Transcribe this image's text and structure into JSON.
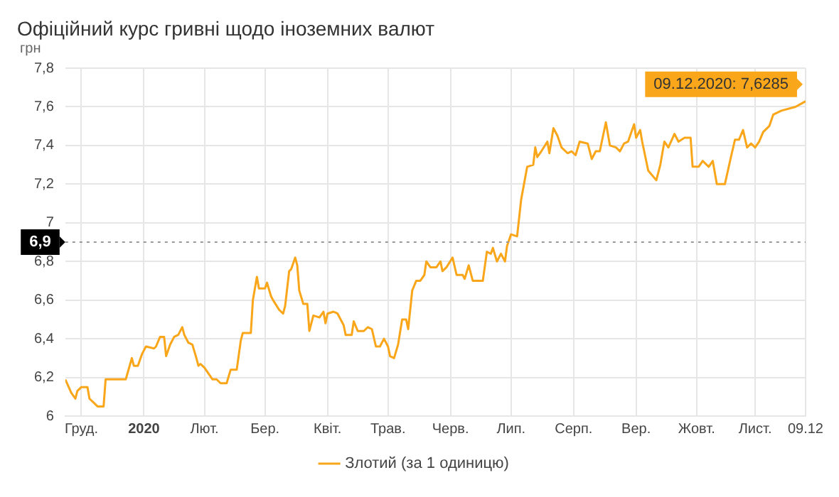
{
  "chart_data": {
    "type": "line",
    "title": "Офіційний курс гривні щодо іноземних валют",
    "ylabel": "грн",
    "xlim": [
      "2019-12-08",
      "2020-12-09"
    ],
    "xticks": [
      {
        "value": "2019-12-16",
        "label": "Груд."
      },
      {
        "value": "2020-01-16",
        "label": "2020"
      },
      {
        "value": "2020-02-15",
        "label": "Лют."
      },
      {
        "value": "2020-03-16",
        "label": "Бер."
      },
      {
        "value": "2020-04-16",
        "label": "Квіт."
      },
      {
        "value": "2020-05-16",
        "label": "Трав."
      },
      {
        "value": "2020-06-16",
        "label": "Черв."
      },
      {
        "value": "2020-07-16",
        "label": "Лип."
      },
      {
        "value": "2020-08-16",
        "label": "Серп."
      },
      {
        "value": "2020-09-16",
        "label": "Вер."
      },
      {
        "value": "2020-10-16",
        "label": "Жовт."
      },
      {
        "value": "2020-11-14",
        "label": "Лист."
      },
      {
        "value": "2020-12-09",
        "label": "09.12"
      }
    ],
    "ylim": [
      6,
      7.8
    ],
    "yticks": [
      6,
      {
        "value": 6.2,
        "label": "6,2"
      },
      {
        "value": 6.4,
        "label": "6,4"
      },
      {
        "value": 6.6,
        "label": "6,6"
      },
      {
        "value": 6.8,
        "label": "6,8"
      },
      7,
      {
        "value": 7.2,
        "label": "7,2"
      },
      {
        "value": 7.4,
        "label": "7,4"
      },
      {
        "value": 7.6,
        "label": "7,6"
      },
      {
        "value": 7.8,
        "label": "7,8"
      }
    ],
    "grid": true,
    "legend": "bottom",
    "marker": "none",
    "line_style": "solid",
    "ref_lines": [
      {
        "axis": "y",
        "value": 6.9,
        "label": "6,9",
        "color": "#999999",
        "line_style": "dotted"
      }
    ],
    "annotations": [
      {
        "text": "09.12.2020: 7,6285",
        "x": "2020-12-09",
        "y": 7.6285
      }
    ],
    "series": [
      {
        "name": "Злотий (за 1 одиницю)",
        "color": "#f9a61a",
        "x": [
          "2019-12-08",
          "2019-12-11",
          "2019-12-13",
          "2019-12-14",
          "2019-12-16",
          "2019-12-19",
          "2019-12-20",
          "2019-12-22",
          "2019-12-24",
          "2019-12-27",
          "2019-12-28",
          "2020-01-07",
          "2020-01-10",
          "2020-01-11",
          "2020-01-13",
          "2020-01-15",
          "2020-01-17",
          "2020-01-21",
          "2020-01-22",
          "2020-01-24",
          "2020-01-26",
          "2020-01-27",
          "2020-01-29",
          "2020-01-31",
          "2020-02-02",
          "2020-02-04",
          "2020-02-05",
          "2020-02-07",
          "2020-02-09",
          "2020-02-11",
          "2020-02-12",
          "2020-02-13",
          "2020-02-15",
          "2020-02-17",
          "2020-02-19",
          "2020-02-21",
          "2020-02-23",
          "2020-02-26",
          "2020-02-28",
          "2020-03-02",
          "2020-03-04",
          "2020-03-05",
          "2020-03-09",
          "2020-03-10",
          "2020-03-12",
          "2020-03-13",
          "2020-03-16",
          "2020-03-17",
          "2020-03-19",
          "2020-03-20",
          "2020-03-23",
          "2020-03-25",
          "2020-03-26",
          "2020-03-28",
          "2020-03-29",
          "2020-03-31",
          "2020-04-01",
          "2020-04-02",
          "2020-04-04",
          "2020-04-06",
          "2020-04-07",
          "2020-04-09",
          "2020-04-12",
          "2020-04-14",
          "2020-04-15",
          "2020-04-16",
          "2020-04-19",
          "2020-04-21",
          "2020-04-24",
          "2020-04-25",
          "2020-04-28",
          "2020-04-29",
          "2020-05-01",
          "2020-05-04",
          "2020-05-06",
          "2020-05-08",
          "2020-05-10",
          "2020-05-12",
          "2020-05-14",
          "2020-05-16",
          "2020-05-17",
          "2020-05-19",
          "2020-05-21",
          "2020-05-23",
          "2020-05-25",
          "2020-05-26",
          "2020-05-28",
          "2020-05-30",
          "2020-06-01",
          "2020-06-03",
          "2020-06-04",
          "2020-06-06",
          "2020-06-09",
          "2020-06-11",
          "2020-06-12",
          "2020-06-14",
          "2020-06-17",
          "2020-06-19",
          "2020-06-22",
          "2020-06-23",
          "2020-06-25",
          "2020-06-27",
          "2020-07-02",
          "2020-07-04",
          "2020-07-06",
          "2020-07-07",
          "2020-07-09",
          "2020-07-11",
          "2020-07-13",
          "2020-07-14",
          "2020-07-16",
          "2020-07-19",
          "2020-07-21",
          "2020-07-24",
          "2020-07-27",
          "2020-07-28",
          "2020-07-29",
          "2020-07-31",
          "2020-08-03",
          "2020-08-04",
          "2020-08-06",
          "2020-08-08",
          "2020-08-10",
          "2020-08-13",
          "2020-08-15",
          "2020-08-17",
          "2020-08-19",
          "2020-08-23",
          "2020-08-25",
          "2020-08-27",
          "2020-08-29",
          "2020-09-01",
          "2020-09-03",
          "2020-09-06",
          "2020-09-08",
          "2020-09-10",
          "2020-09-12",
          "2020-09-15",
          "2020-09-16",
          "2020-09-18",
          "2020-09-19",
          "2020-09-22",
          "2020-09-26",
          "2020-09-28",
          "2020-09-30",
          "2020-10-02",
          "2020-10-05",
          "2020-10-07",
          "2020-10-10",
          "2020-10-13",
          "2020-10-14",
          "2020-10-17",
          "2020-10-19",
          "2020-10-22",
          "2020-10-24",
          "2020-10-26",
          "2020-10-30",
          "2020-11-02",
          "2020-11-04",
          "2020-11-06",
          "2020-11-08",
          "2020-11-10",
          "2020-11-12",
          "2020-11-14",
          "2020-11-16",
          "2020-11-18",
          "2020-11-21",
          "2020-11-23",
          "2020-11-27",
          "2020-12-04",
          "2020-12-09"
        ],
        "values": [
          6.19,
          6.12,
          6.09,
          6.13,
          6.15,
          6.15,
          6.09,
          6.07,
          6.05,
          6.05,
          6.19,
          6.19,
          6.3,
          6.26,
          6.26,
          6.32,
          6.36,
          6.35,
          6.36,
          6.41,
          6.41,
          6.31,
          6.37,
          6.41,
          6.42,
          6.46,
          6.42,
          6.38,
          6.37,
          6.3,
          6.26,
          6.27,
          6.25,
          6.22,
          6.19,
          6.19,
          6.17,
          6.17,
          6.24,
          6.24,
          6.39,
          6.43,
          6.43,
          6.6,
          6.72,
          6.66,
          6.66,
          6.69,
          6.62,
          6.6,
          6.55,
          6.53,
          6.57,
          6.75,
          6.76,
          6.82,
          6.78,
          6.65,
          6.58,
          6.58,
          6.44,
          6.52,
          6.51,
          6.54,
          6.48,
          6.53,
          6.54,
          6.53,
          6.47,
          6.42,
          6.42,
          6.49,
          6.44,
          6.44,
          6.46,
          6.45,
          6.36,
          6.36,
          6.4,
          6.36,
          6.31,
          6.3,
          6.37,
          6.5,
          6.5,
          6.45,
          6.65,
          6.7,
          6.7,
          6.73,
          6.8,
          6.77,
          6.77,
          6.8,
          6.75,
          6.77,
          6.82,
          6.73,
          6.73,
          6.71,
          6.78,
          6.7,
          6.7,
          6.85,
          6.84,
          6.87,
          6.8,
          6.84,
          6.8,
          6.88,
          6.94,
          6.93,
          7.12,
          7.29,
          7.3,
          7.39,
          7.34,
          7.37,
          7.42,
          7.36,
          7.49,
          7.45,
          7.39,
          7.36,
          7.37,
          7.35,
          7.42,
          7.41,
          7.33,
          7.37,
          7.37,
          7.52,
          7.4,
          7.39,
          7.37,
          7.41,
          7.42,
          7.51,
          7.44,
          7.48,
          7.42,
          7.27,
          7.22,
          7.3,
          7.42,
          7.39,
          7.46,
          7.42,
          7.44,
          7.44,
          7.29,
          7.29,
          7.32,
          7.29,
          7.32,
          7.2,
          7.2,
          7.34,
          7.43,
          7.43,
          7.48,
          7.39,
          7.41,
          7.39,
          7.42,
          7.47,
          7.5,
          7.56,
          7.58,
          7.6,
          7.6285
        ]
      }
    ]
  }
}
